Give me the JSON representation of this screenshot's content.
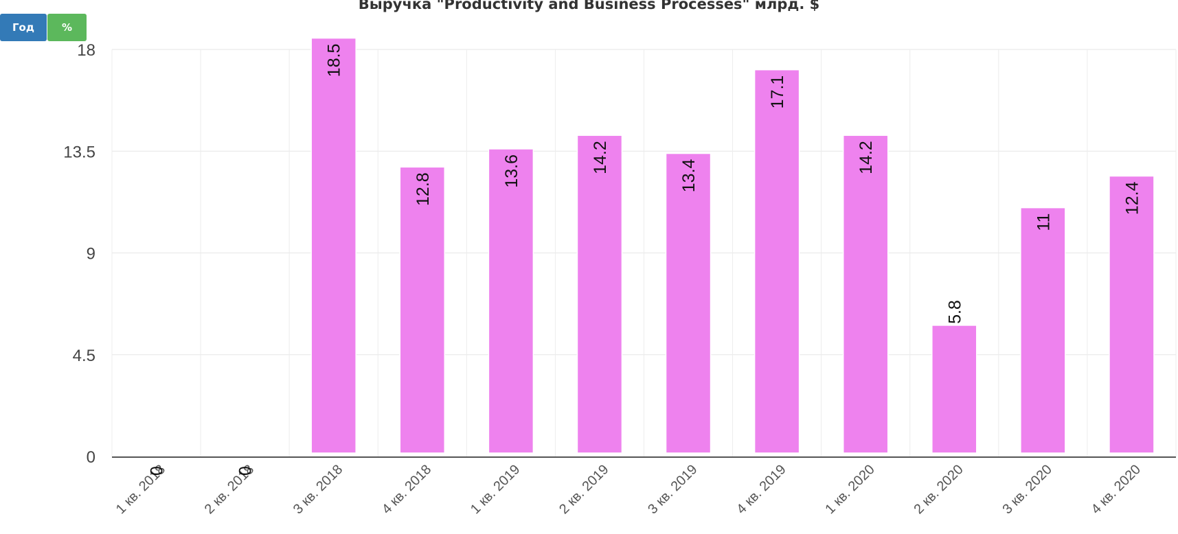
{
  "controls": {
    "year_label": "Год",
    "percent_label": "%",
    "year_color": "#337ab7",
    "percent_color": "#5cb85c"
  },
  "chart_data": {
    "type": "bar",
    "title": "Выручка \"Productivity and Business Processes\" млрд. $",
    "xlabel": "",
    "ylabel": "",
    "categories": [
      "1 кв. 2018",
      "2 кв. 2018",
      "3 кв. 2018",
      "4 кв. 2018",
      "1 кв. 2019",
      "2 кв. 2019",
      "3 кв. 2019",
      "4 кв. 2019",
      "1 кв. 2020",
      "2 кв. 2020",
      "3 кв. 2020",
      "4 кв. 2020"
    ],
    "values": [
      0,
      0,
      18.5,
      12.8,
      13.6,
      14.2,
      13.4,
      17.1,
      14.2,
      5.8,
      11,
      12.4
    ],
    "data_labels": [
      "0",
      "0",
      "18.5",
      "12.8",
      "13.6",
      "14.2",
      "13.4",
      "17.1",
      "14.2",
      "5.8",
      "11",
      "12.4"
    ],
    "yticks": [
      "0",
      "4.5",
      "9",
      "13.5",
      "18"
    ],
    "ylim": [
      0,
      18
    ],
    "bar_color": "#ee82ee",
    "grid": true,
    "legend": "none"
  }
}
